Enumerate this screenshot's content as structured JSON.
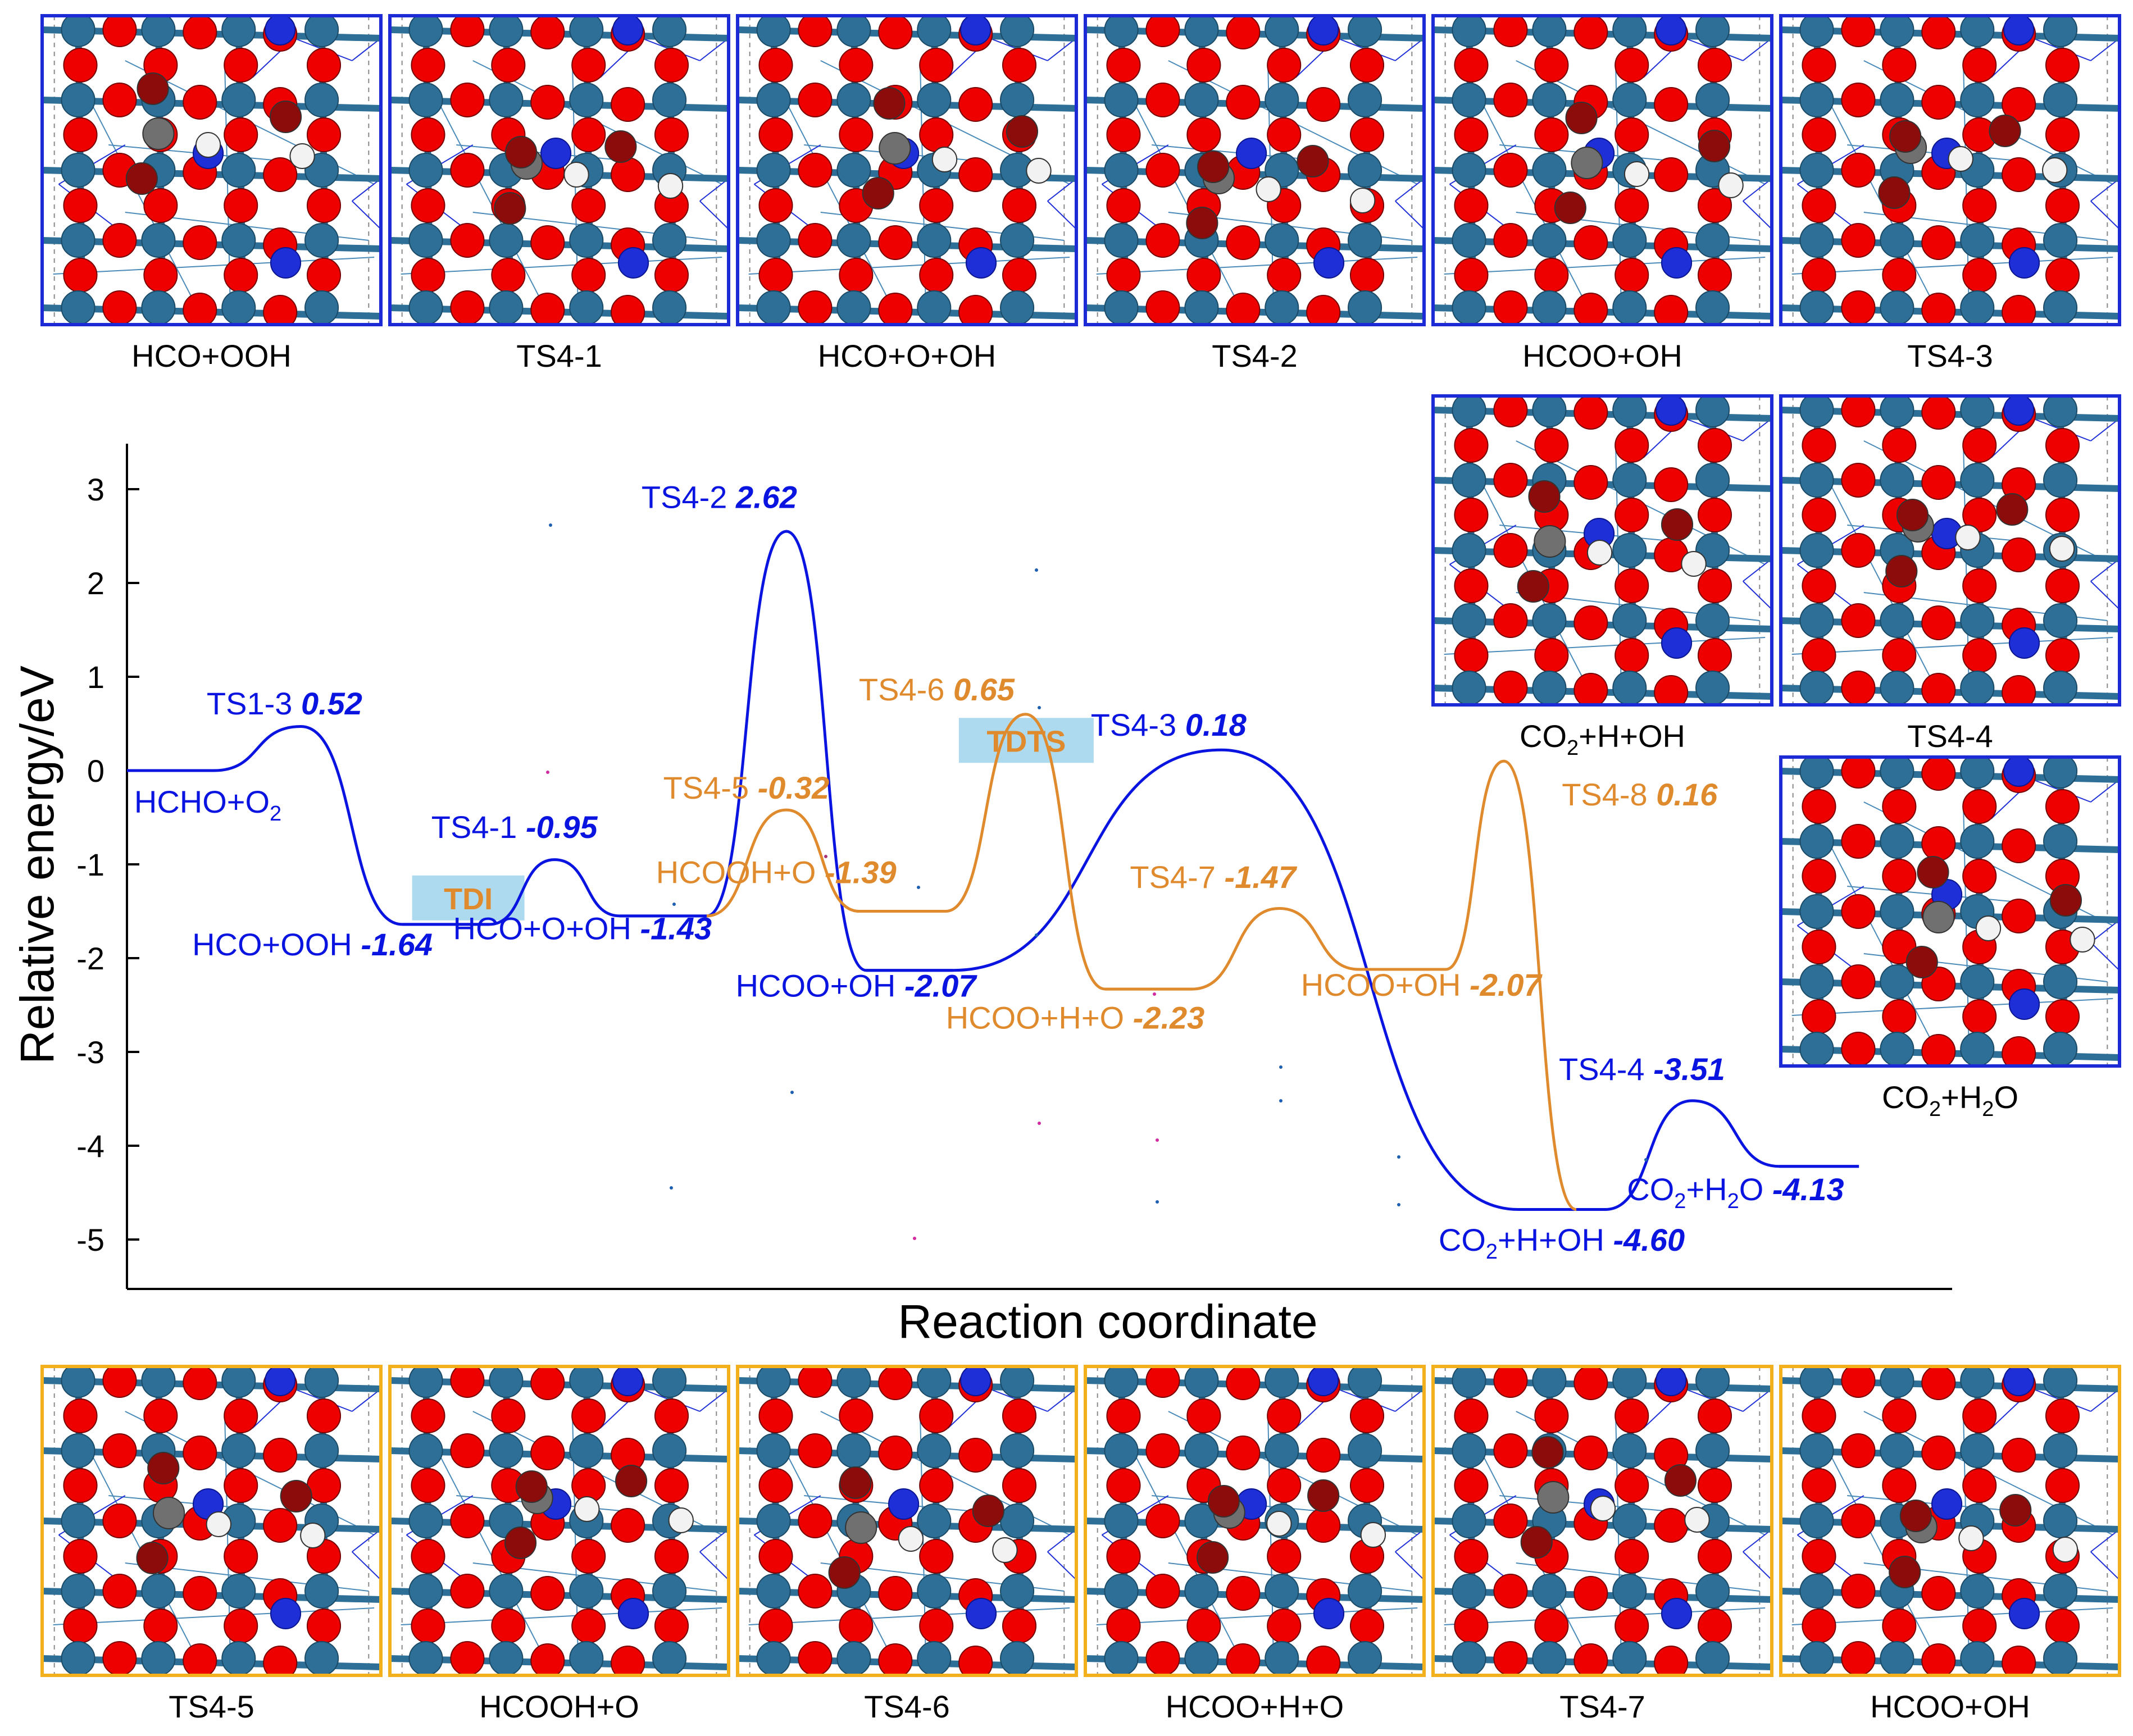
{
  "colors": {
    "blue": "#0a14e0",
    "orange": "#e08a2e",
    "panel_blue": "#1d2bd6",
    "panel_orange": "#f2b01c",
    "ti": "#2e6f97",
    "o": "#ee0000",
    "n": "#1f2fd8",
    "o_ads": "#8c0c0c",
    "c": "#707070",
    "h": "#f2f2f2",
    "highlight": "#9fd4ec"
  },
  "top_panels": [
    {
      "label": "HCO+OOH"
    },
    {
      "label": "TS4-1"
    },
    {
      "label": "HCO+O+OH"
    },
    {
      "label": "TS4-2"
    },
    {
      "label": "HCOO+OH"
    },
    {
      "label": "TS4-3"
    }
  ],
  "right_panels": [
    {
      "label": "CO",
      "sub1": "2",
      "rest": "+H+OH"
    },
    {
      "label": "TS4-4",
      "sub1": "",
      "rest": ""
    },
    {
      "label": "CO",
      "sub1": "2",
      "rest": "+H",
      "sub2": "2",
      "rest2": "O"
    }
  ],
  "bottom_panels": [
    {
      "label": "TS4-5"
    },
    {
      "label": "HCOOH+O"
    },
    {
      "label": "TS4-6"
    },
    {
      "label": "HCOO+H+O"
    },
    {
      "label": "TS4-7"
    },
    {
      "label": "HCOO+OH"
    }
  ],
  "chart_data": {
    "type": "line",
    "title": "",
    "xlabel": "Reaction coordinate",
    "ylabel": "Relative energy/eV",
    "ylim": [
      -5.5,
      3.4
    ],
    "yticks": [
      3,
      2,
      1,
      0,
      -1,
      -2,
      -3,
      -4,
      -5
    ],
    "ytick_labels": [
      "3",
      "2",
      "1",
      "0",
      "-1",
      "-2",
      "-3",
      "-4",
      "-5"
    ],
    "series": [
      {
        "name": "blue pathway",
        "color": "#0a14e0",
        "states": [
          {
            "kind": "min",
            "x": [
              0.0,
              0.6
            ],
            "y": 0.0
          },
          {
            "kind": "ts",
            "x": 1.2,
            "y": 0.52,
            "drawn_y": 0.47
          },
          {
            "kind": "min",
            "x": [
              1.9,
              2.5
            ],
            "y": -1.64
          },
          {
            "kind": "ts",
            "x": 2.95,
            "y": -0.95
          },
          {
            "kind": "min",
            "x": [
              3.4,
              4.0
            ],
            "y": -1.43,
            "drawn_y": -1.55
          },
          {
            "kind": "ts",
            "x": 4.55,
            "y": 2.62,
            "drawn_y": 2.55
          },
          {
            "kind": "min",
            "x": [
              5.1,
              5.7
            ],
            "y": -2.07,
            "drawn_y": -2.13
          },
          {
            "kind": "ts",
            "x": 7.55,
            "y": 0.18,
            "drawn_y": 0.22
          },
          {
            "kind": "min",
            "x": [
              9.6,
              10.2
            ],
            "y": -4.6,
            "drawn_y": -4.68
          },
          {
            "kind": "ts",
            "x": 10.8,
            "y": -3.51,
            "drawn_y": -3.52
          },
          {
            "kind": "min",
            "x": [
              11.4,
              11.95
            ],
            "y": -4.13,
            "drawn_y": -4.22
          }
        ]
      },
      {
        "name": "orange pathway",
        "color": "#e08a2e",
        "states": [
          {
            "kind": "min",
            "x": [
              4.0,
              4.0
            ],
            "y": -1.43,
            "drawn_y": -1.55
          },
          {
            "kind": "ts",
            "x": 4.55,
            "y": -0.32,
            "drawn_y": -0.42
          },
          {
            "kind": "min",
            "x": [
              5.05,
              5.65
            ],
            "y": -1.39,
            "drawn_y": -1.5
          },
          {
            "kind": "ts",
            "x": 6.2,
            "y": 0.65,
            "drawn_y": 0.6
          },
          {
            "kind": "min",
            "x": [
              6.75,
              7.35
            ],
            "y": -2.23,
            "drawn_y": -2.33
          },
          {
            "kind": "ts",
            "x": 7.95,
            "y": -1.47
          },
          {
            "kind": "min",
            "x": [
              8.5,
              9.1
            ],
            "y": -2.07,
            "drawn_y": -2.12
          },
          {
            "kind": "ts",
            "x": 9.5,
            "y": 0.16,
            "drawn_y": 0.1
          },
          {
            "kind": "min",
            "x": [
              10.0,
              10.0
            ],
            "y": -4.6,
            "drawn_y": -4.68
          }
        ]
      }
    ],
    "annotations": [
      {
        "name": "TS1-3",
        "value": "0.52",
        "color": "blue",
        "x": 0.55,
        "y": 0.6
      },
      {
        "name": "HCHO+O",
        "sub": "2",
        "value": "",
        "color": "blue",
        "x": 0.05,
        "y": -0.45
      },
      {
        "name": "TS4-1",
        "value": "-0.95",
        "color": "blue",
        "x": 2.1,
        "y": -0.72
      },
      {
        "name": "HCO+OOH",
        "value": "-1.64",
        "color": "blue",
        "x": 0.45,
        "y": -1.97
      },
      {
        "name": "HCO+O+OH",
        "value": "-1.43",
        "color": "blue",
        "x": 2.25,
        "y": -1.8
      },
      {
        "name": "TS4-2",
        "value": "2.62",
        "color": "blue",
        "x": 3.55,
        "y": 2.8
      },
      {
        "name": "TS4-5",
        "value": "-0.32",
        "color": "orange",
        "x": 3.7,
        "y": -0.3
      },
      {
        "name": "HCOOH+O",
        "value": "-1.39",
        "color": "orange",
        "x": 3.65,
        "y": -1.2
      },
      {
        "name": "TS4-6",
        "value": "0.65",
        "color": "orange",
        "x": 5.05,
        "y": 0.75
      },
      {
        "name": "TS4-3",
        "value": "0.18",
        "color": "blue",
        "x": 6.65,
        "y": 0.37
      },
      {
        "name": "HCOO+OH",
        "value": "-2.07",
        "color": "blue",
        "x": 4.2,
        "y": -2.41
      },
      {
        "name": "HCOO+H+O",
        "value": "-2.23",
        "color": "orange",
        "x": 5.65,
        "y": -2.75
      },
      {
        "name": "TS4-7",
        "value": "-1.47",
        "color": "orange",
        "x": 6.92,
        "y": -1.25
      },
      {
        "name": "HCOO+OH",
        "value": "-2.07",
        "color": "orange",
        "x": 8.1,
        "y": -2.4
      },
      {
        "name": "TS4-8",
        "value": "0.16",
        "color": "orange",
        "x": 9.9,
        "y": -0.37
      },
      {
        "name": "TS4-4",
        "value": "-3.51",
        "color": "blue",
        "x": 9.88,
        "y": -3.3
      },
      {
        "name": "CO",
        "sub": "2",
        "rest": "+H",
        "sub2": "2",
        "rest2": "O",
        "value": "-4.13",
        "color": "blue",
        "x": 10.35,
        "y": -4.58
      },
      {
        "name": "CO",
        "sub": "2",
        "rest": "+H+OH",
        "value": "-4.60",
        "color": "blue",
        "x": 9.05,
        "y": -5.12
      }
    ],
    "highlights": [
      {
        "label": "TDI",
        "x": 2.2,
        "y": -1.43
      },
      {
        "label": "TDTS",
        "x": 6.05,
        "y": 0.25
      }
    ]
  }
}
